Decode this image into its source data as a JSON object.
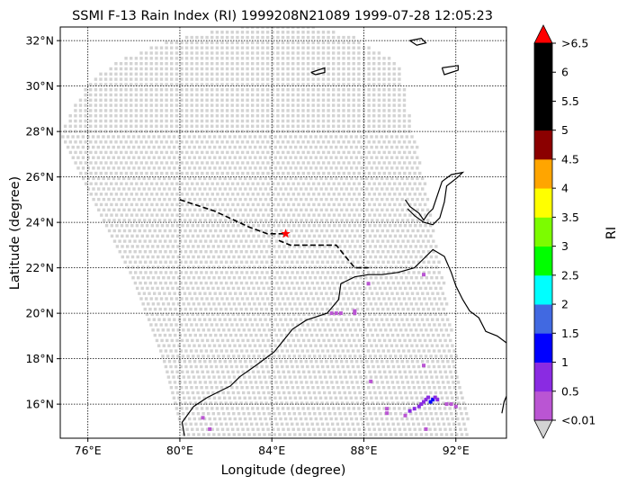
{
  "chart_data": {
    "type": "scatter",
    "title": "SSMI F-13 Rain Index (RI) 1999208N21089 1999-07-28 12:05:23",
    "xlabel": "Longitude (degree)",
    "ylabel": "Latitude (degree)",
    "xlim": [
      74.8,
      94.2
    ],
    "ylim": [
      14.5,
      32.6
    ],
    "grid": true,
    "x_ticks": [
      76,
      80,
      84,
      88,
      92
    ],
    "x_tick_labels": [
      "76°E",
      "80°E",
      "84°E",
      "88°E",
      "92°E"
    ],
    "y_ticks": [
      16,
      18,
      20,
      22,
      24,
      26,
      28,
      30,
      32
    ],
    "y_tick_labels": [
      "16°N",
      "18°N",
      "20°N",
      "22°N",
      "24°N",
      "26°N",
      "28°N",
      "30°N",
      "32°N"
    ],
    "swath": {
      "color": "#d3d3d3",
      "top_edge": [
        [
          74.8,
          28.0
        ],
        [
          75.4,
          29.2
        ],
        [
          76.2,
          30.3
        ],
        [
          77.5,
          31.2
        ],
        [
          79.5,
          32.0
        ],
        [
          82.5,
          32.6
        ],
        [
          85.5,
          32.7
        ],
        [
          87.5,
          32.2
        ],
        [
          89.5,
          31.0
        ]
      ],
      "right_edge": [
        [
          89.5,
          31.0
        ],
        [
          90.4,
          27.0
        ],
        [
          91.2,
          23.0
        ],
        [
          91.8,
          19.5
        ],
        [
          92.4,
          16.0
        ],
        [
          92.7,
          14.5
        ]
      ],
      "left_edge": [
        [
          74.8,
          28.0
        ],
        [
          76.5,
          24.5
        ],
        [
          78.0,
          21.5
        ],
        [
          79.3,
          18.0
        ],
        [
          80.2,
          14.5
        ]
      ]
    },
    "rain_points": [
      {
        "lon": 86.6,
        "lat": 20.0,
        "ri": 0.3
      },
      {
        "lon": 86.8,
        "lat": 20.0,
        "ri": 0.3
      },
      {
        "lon": 87.0,
        "lat": 20.0,
        "ri": 0.3
      },
      {
        "lon": 87.6,
        "lat": 20.1,
        "ri": 0.3
      },
      {
        "lon": 87.6,
        "lat": 20.0,
        "ri": 0.3
      },
      {
        "lon": 88.2,
        "lat": 21.3,
        "ri": 0.3
      },
      {
        "lon": 90.6,
        "lat": 21.7,
        "ri": 0.3
      },
      {
        "lon": 90.6,
        "lat": 17.7,
        "ri": 0.3
      },
      {
        "lon": 88.3,
        "lat": 17.0,
        "ri": 0.3
      },
      {
        "lon": 89.0,
        "lat": 15.8,
        "ri": 0.3
      },
      {
        "lon": 89.0,
        "lat": 15.6,
        "ri": 0.3
      },
      {
        "lon": 89.8,
        "lat": 15.5,
        "ri": 0.3
      },
      {
        "lon": 90.0,
        "lat": 15.7,
        "ri": 0.7
      },
      {
        "lon": 90.2,
        "lat": 15.8,
        "ri": 0.7
      },
      {
        "lon": 90.4,
        "lat": 15.9,
        "ri": 0.7
      },
      {
        "lon": 90.5,
        "lat": 16.0,
        "ri": 0.7
      },
      {
        "lon": 90.6,
        "lat": 16.1,
        "ri": 0.7
      },
      {
        "lon": 90.7,
        "lat": 16.2,
        "ri": 0.7
      },
      {
        "lon": 90.8,
        "lat": 16.3,
        "ri": 0.7
      },
      {
        "lon": 90.9,
        "lat": 16.1,
        "ri": 1.2
      },
      {
        "lon": 91.0,
        "lat": 16.2,
        "ri": 1.2
      },
      {
        "lon": 91.1,
        "lat": 16.3,
        "ri": 0.7
      },
      {
        "lon": 91.2,
        "lat": 16.2,
        "ri": 0.7
      },
      {
        "lon": 91.6,
        "lat": 16.0,
        "ri": 0.3
      },
      {
        "lon": 91.8,
        "lat": 16.0,
        "ri": 0.3
      },
      {
        "lon": 92.0,
        "lat": 15.9,
        "ri": 0.3
      },
      {
        "lon": 90.7,
        "lat": 14.9,
        "ri": 0.3
      },
      {
        "lon": 81.0,
        "lat": 15.4,
        "ri": 0.3
      },
      {
        "lon": 81.3,
        "lat": 14.9,
        "ri": 0.3
      }
    ],
    "track": [
      [
        80.0,
        25.0
      ],
      [
        81.5,
        24.5
      ],
      [
        83.0,
        23.8
      ],
      [
        83.8,
        23.5
      ],
      [
        84.6,
        23.5
      ]
    ],
    "track_future": [
      [
        84.3,
        23.2
      ],
      [
        84.8,
        23.0
      ],
      [
        86.8,
        23.0
      ],
      [
        87.2,
        22.5
      ],
      [
        87.6,
        22.0
      ],
      [
        88.2,
        22.0
      ]
    ],
    "center_marker": {
      "lon": 84.6,
      "lat": 23.5,
      "color": "#ff0000"
    },
    "colorbar": {
      "label": "RI",
      "tick_labels": [
        "<0.01",
        "0.5",
        "1",
        "1.5",
        "2",
        "2.5",
        "3",
        "3.5",
        "4",
        "4.5",
        "5",
        "5.5",
        "6",
        ">6.5"
      ],
      "colors": [
        "#ba55d3",
        "#8a2be2",
        "#0000ff",
        "#4169e1",
        "#00ffff",
        "#00ff00",
        "#7cfc00",
        "#ffff00",
        "#ffa500",
        "#8b0000",
        "#000000",
        "#000000",
        "#000000"
      ],
      "under_color": "#d3d3d3",
      "over_color": "#ff0000"
    }
  }
}
